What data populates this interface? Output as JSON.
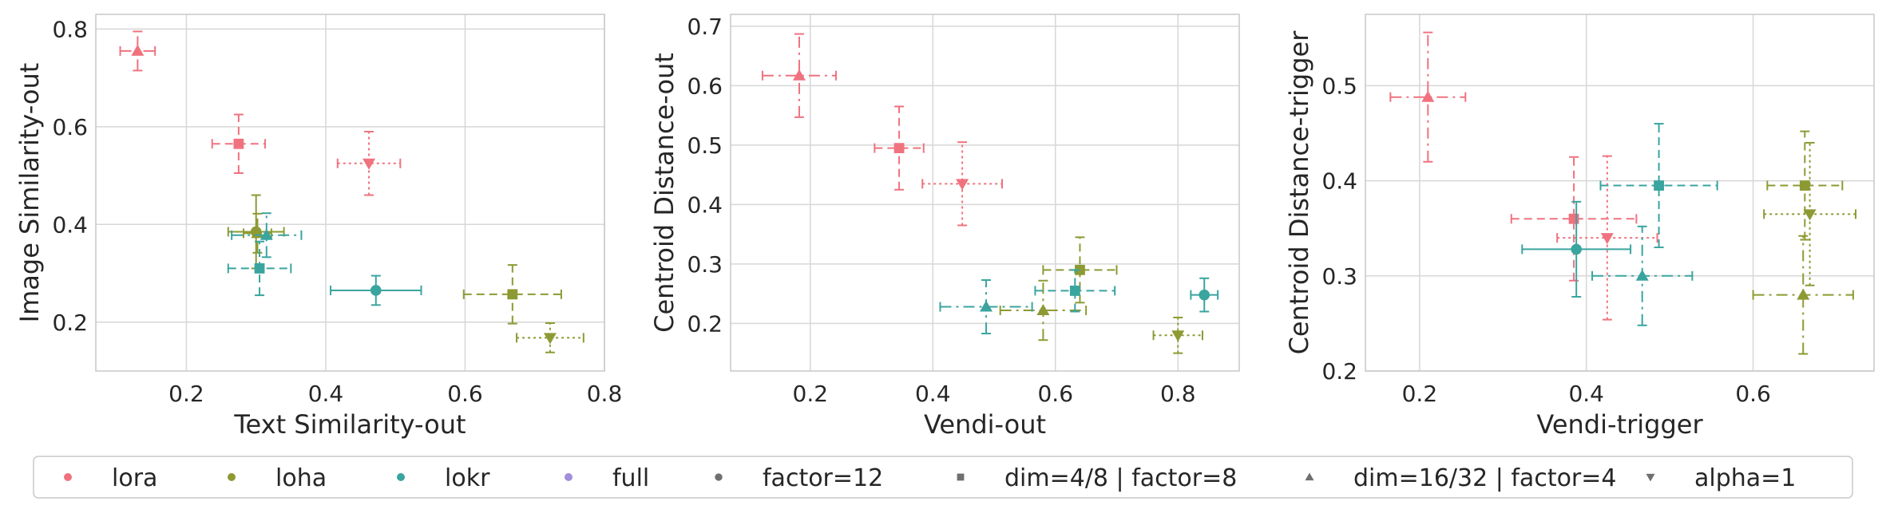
{
  "colors": {
    "lora": "#f0727f",
    "loha": "#8d9a33",
    "lokr": "#3aa49f",
    "full": "#a08fdc",
    "shape": "#6f6f6f",
    "grid": "#d7d7d7",
    "frame": "#c8c8c8"
  },
  "chart_data": [
    {
      "type": "scatter",
      "title": "",
      "xlabel": "Text Similarity-out",
      "ylabel": "Image Similarity-out",
      "xlim": [
        0.07,
        0.8
      ],
      "ylim": [
        0.1,
        0.83
      ],
      "xticks": [
        0.2,
        0.4,
        0.6,
        0.8
      ],
      "xtick_labels": [
        "0.2",
        "0.4",
        "0.6",
        "0.8"
      ],
      "yticks": [
        0.2,
        0.4,
        0.6,
        0.8
      ],
      "ytick_labels": [
        "0.2",
        "0.4",
        "0.6",
        "0.8"
      ],
      "grid": true,
      "points": [
        {
          "algo": "lora",
          "marker": "triangle-up",
          "x": 0.13,
          "xerr": 0.025,
          "y": 0.755,
          "yerr": 0.04
        },
        {
          "algo": "lora",
          "marker": "square",
          "x": 0.275,
          "xerr": 0.038,
          "y": 0.565,
          "yerr": 0.06
        },
        {
          "algo": "lora",
          "marker": "triangle-down",
          "x": 0.462,
          "xerr": 0.045,
          "y": 0.525,
          "yerr": 0.065
        },
        {
          "algo": "loha",
          "marker": "triangle-up",
          "x": 0.302,
          "xerr": 0.02,
          "y": 0.382,
          "yerr": 0.04
        },
        {
          "algo": "loha",
          "marker": "square",
          "x": 0.668,
          "xerr": 0.07,
          "y": 0.257,
          "yerr": 0.06
        },
        {
          "algo": "loha",
          "marker": "triangle-down",
          "x": 0.722,
          "xerr": 0.048,
          "y": 0.168,
          "yerr": 0.03
        },
        {
          "algo": "loha",
          "marker": "circle",
          "x": 0.3,
          "xerr": 0.04,
          "y": 0.385,
          "yerr": 0.075
        },
        {
          "algo": "lokr",
          "marker": "triangle-up",
          "x": 0.315,
          "xerr": 0.05,
          "y": 0.378,
          "yerr": 0.045
        },
        {
          "algo": "lokr",
          "marker": "square",
          "x": 0.305,
          "xerr": 0.045,
          "y": 0.31,
          "yerr": 0.055
        },
        {
          "algo": "lokr",
          "marker": "circle",
          "x": 0.472,
          "xerr": 0.065,
          "y": 0.265,
          "yerr": 0.03
        }
      ]
    },
    {
      "type": "scatter",
      "title": "",
      "xlabel": "Vendi-out",
      "ylabel": "Centroid Distance-out",
      "xlim": [
        0.07,
        0.9
      ],
      "ylim": [
        0.12,
        0.72
      ],
      "xticks": [
        0.2,
        0.4,
        0.6,
        0.8
      ],
      "xtick_labels": [
        "0.2",
        "0.4",
        "0.6",
        "0.8"
      ],
      "yticks": [
        0.2,
        0.3,
        0.4,
        0.5,
        0.6,
        0.7
      ],
      "ytick_labels": [
        "0.2",
        "0.3",
        "0.4",
        "0.5",
        "0.6",
        "0.7"
      ],
      "grid": true,
      "points": [
        {
          "algo": "lora",
          "marker": "triangle-up",
          "x": 0.182,
          "xerr": 0.06,
          "y": 0.617,
          "yerr": 0.07
        },
        {
          "algo": "lora",
          "marker": "square",
          "x": 0.345,
          "xerr": 0.04,
          "y": 0.495,
          "yerr": 0.07
        },
        {
          "algo": "lora",
          "marker": "triangle-down",
          "x": 0.448,
          "xerr": 0.065,
          "y": 0.435,
          "yerr": 0.07
        },
        {
          "algo": "loha",
          "marker": "square",
          "x": 0.64,
          "xerr": 0.06,
          "y": 0.29,
          "yerr": 0.055
        },
        {
          "algo": "loha",
          "marker": "triangle-up",
          "x": 0.58,
          "xerr": 0.07,
          "y": 0.222,
          "yerr": 0.05
        },
        {
          "algo": "loha",
          "marker": "triangle-down",
          "x": 0.8,
          "xerr": 0.04,
          "y": 0.18,
          "yerr": 0.03
        },
        {
          "algo": "lokr",
          "marker": "triangle-up",
          "x": 0.487,
          "xerr": 0.075,
          "y": 0.228,
          "yerr": 0.045
        },
        {
          "algo": "lokr",
          "marker": "square",
          "x": 0.632,
          "xerr": 0.065,
          "y": 0.255,
          "yerr": 0.035
        },
        {
          "algo": "lokr",
          "marker": "circle",
          "x": 0.843,
          "xerr": 0.022,
          "y": 0.248,
          "yerr": 0.028
        }
      ]
    },
    {
      "type": "scatter",
      "title": "",
      "xlabel": "Vendi-trigger",
      "ylabel": "Centroid Distance-trigger",
      "xlim": [
        0.135,
        0.745
      ],
      "ylim": [
        0.2,
        0.575
      ],
      "xticks": [
        0.2,
        0.4,
        0.6
      ],
      "xtick_labels": [
        "0.2",
        "0.4",
        "0.6"
      ],
      "yticks": [
        0.2,
        0.3,
        0.4,
        0.5
      ],
      "ytick_labels": [
        "0.2",
        "0.3",
        "0.4",
        "0.5"
      ],
      "grid": true,
      "points": [
        {
          "algo": "lora",
          "marker": "triangle-up",
          "x": 0.21,
          "xerr": 0.045,
          "y": 0.488,
          "yerr": 0.068
        },
        {
          "algo": "lora",
          "marker": "square",
          "x": 0.385,
          "xerr": 0.075,
          "y": 0.36,
          "yerr": 0.065
        },
        {
          "algo": "lora",
          "marker": "triangle-down",
          "x": 0.425,
          "xerr": 0.06,
          "y": 0.34,
          "yerr": 0.086
        },
        {
          "algo": "loha",
          "marker": "square",
          "x": 0.662,
          "xerr": 0.045,
          "y": 0.395,
          "yerr": 0.057
        },
        {
          "algo": "loha",
          "marker": "triangle-down",
          "x": 0.668,
          "xerr": 0.055,
          "y": 0.365,
          "yerr": 0.075
        },
        {
          "algo": "loha",
          "marker": "triangle-up",
          "x": 0.66,
          "xerr": 0.06,
          "y": 0.28,
          "yerr": 0.062
        },
        {
          "algo": "lokr",
          "marker": "square",
          "x": 0.487,
          "xerr": 0.07,
          "y": 0.395,
          "yerr": 0.065
        },
        {
          "algo": "lokr",
          "marker": "circle",
          "x": 0.388,
          "xerr": 0.065,
          "y": 0.328,
          "yerr": 0.05
        },
        {
          "algo": "lokr",
          "marker": "triangle-up",
          "x": 0.467,
          "xerr": 0.06,
          "y": 0.3,
          "yerr": 0.052
        }
      ]
    }
  ],
  "legend": {
    "placement": "bottom",
    "entries": [
      {
        "label": "lora",
        "kind": "color",
        "key": "lora"
      },
      {
        "label": "loha",
        "kind": "color",
        "key": "loha"
      },
      {
        "label": "lokr",
        "kind": "color",
        "key": "lokr"
      },
      {
        "label": "full",
        "kind": "color",
        "key": "full"
      },
      {
        "label": "factor=12",
        "kind": "marker",
        "marker": "circle"
      },
      {
        "label": "dim=4/8 | factor=8",
        "kind": "marker",
        "marker": "square"
      },
      {
        "label": "dim=16/32 | factor=4",
        "kind": "marker",
        "marker": "triangle-up"
      },
      {
        "label": "alpha=1",
        "kind": "marker",
        "marker": "triangle-down"
      }
    ]
  }
}
